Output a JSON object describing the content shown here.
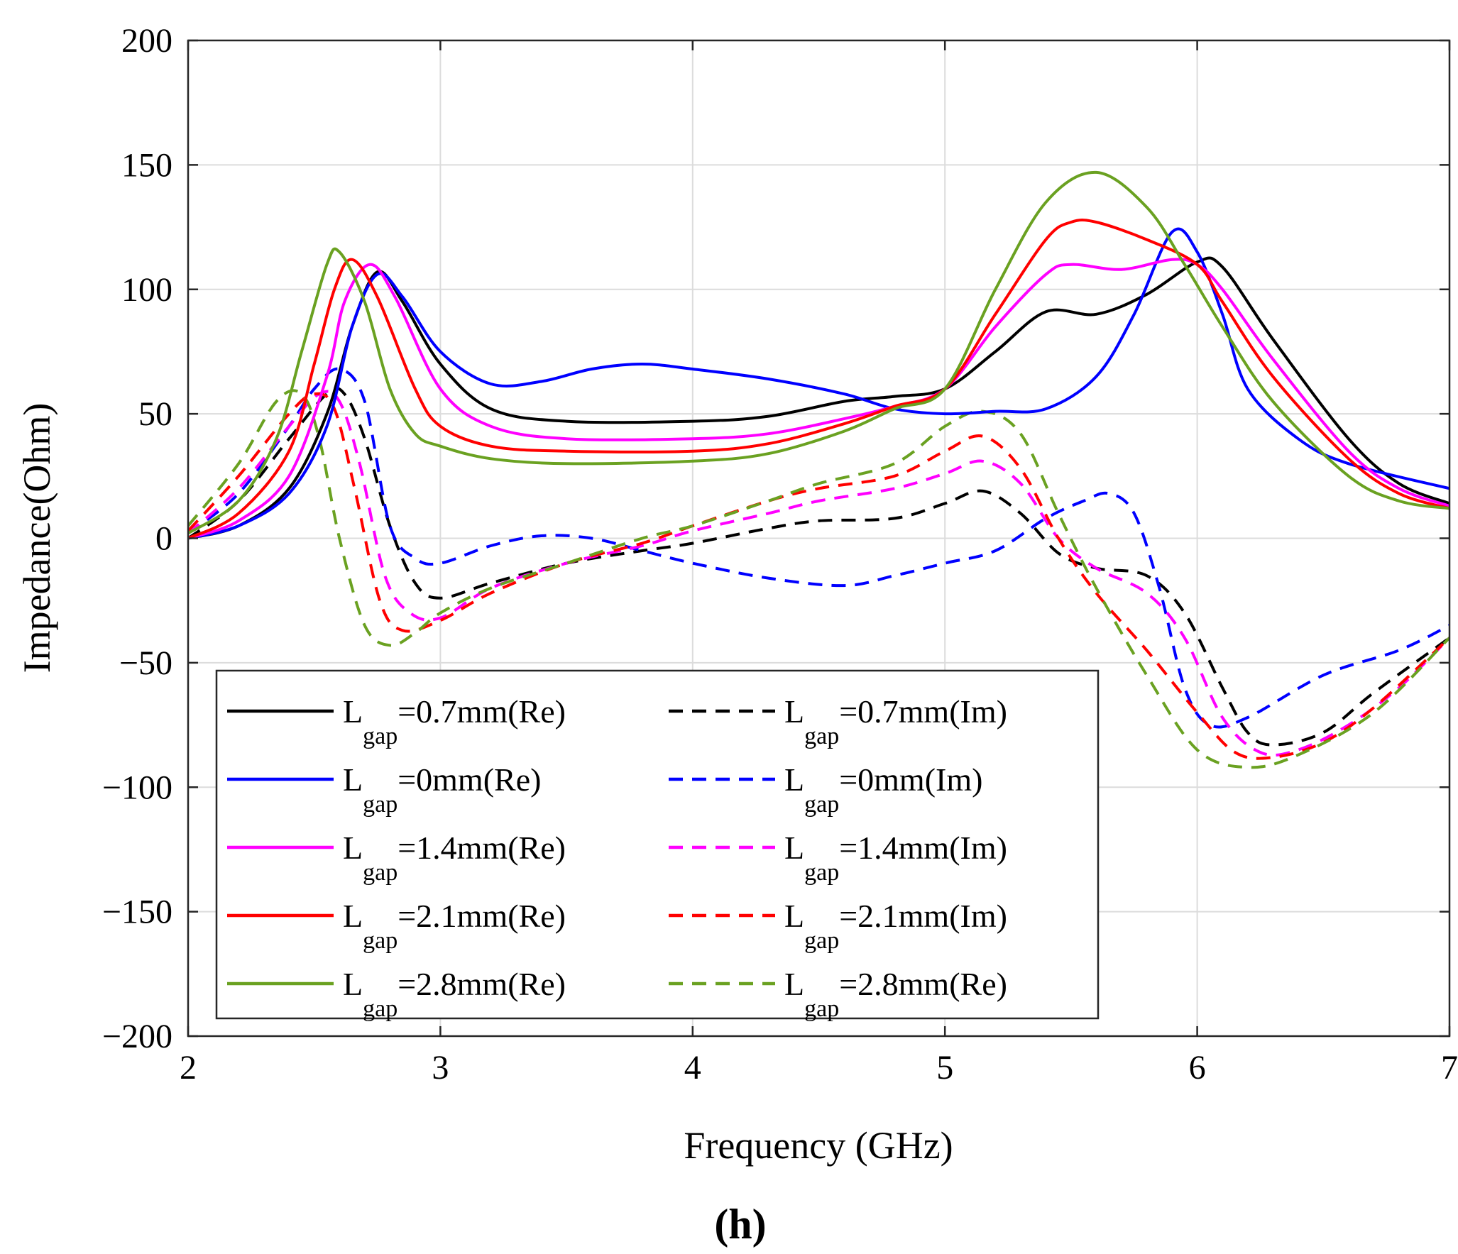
{
  "chart_data": {
    "type": "line",
    "title": "",
    "xlabel": "Frequency (GHz)",
    "ylabel": "Impedance(Ohm)",
    "xlim": [
      2,
      7
    ],
    "ylim": [
      -200,
      200
    ],
    "xticks": [
      2,
      3,
      4,
      5,
      6,
      7
    ],
    "yticks": [
      -200,
      -150,
      -100,
      -50,
      0,
      50,
      100,
      150,
      200
    ],
    "xtick_labels": [
      "2",
      "3",
      "4",
      "5",
      "6",
      "7"
    ],
    "ytick_labels": [
      "−200",
      "−150",
      "−100",
      "−50",
      "0",
      "50",
      "100",
      "150",
      "200"
    ],
    "grid": true,
    "legend_position": "bottom-left",
    "caption": "(h)",
    "series": [
      {
        "name_main": "L",
        "name_sub": "gap",
        "name_rest": "=0.7mm(Re)",
        "color": "#000000",
        "dashed": false,
        "x": [
          2.0,
          2.2,
          2.4,
          2.55,
          2.65,
          2.75,
          2.85,
          3.0,
          3.2,
          3.5,
          4.0,
          4.3,
          4.6,
          4.8,
          5.0,
          5.2,
          5.4,
          5.6,
          5.8,
          6.0,
          6.1,
          6.3,
          6.6,
          6.8,
          7.0
        ],
        "y": [
          0,
          5,
          20,
          50,
          85,
          107,
          95,
          70,
          52,
          47,
          47,
          49,
          55,
          57,
          60,
          75,
          91,
          90,
          98,
          111,
          109,
          80,
          40,
          22,
          14
        ]
      },
      {
        "name_main": "L",
        "name_sub": "gap",
        "name_rest": "=0.7mm(Im)",
        "color": "#000000",
        "dashed": true,
        "x": [
          2.0,
          2.2,
          2.4,
          2.55,
          2.62,
          2.7,
          2.8,
          2.9,
          3.0,
          3.2,
          3.5,
          3.8,
          4.0,
          4.3,
          4.5,
          4.8,
          5.0,
          5.15,
          5.3,
          5.45,
          5.6,
          5.8,
          5.95,
          6.1,
          6.2,
          6.3,
          6.5,
          6.7,
          7.0
        ],
        "y": [
          0,
          15,
          40,
          58,
          58,
          40,
          5,
          -18,
          -24,
          -18,
          -10,
          -5,
          -2,
          4,
          7,
          8,
          14,
          19,
          10,
          -6,
          -12,
          -15,
          -30,
          -60,
          -78,
          -83,
          -78,
          -62,
          -40
        ]
      },
      {
        "name_main": "L",
        "name_sub": "gap",
        "name_rest": "=0mm(Re)",
        "color": "#0000ff",
        "dashed": false,
        "x": [
          2.0,
          2.2,
          2.4,
          2.55,
          2.65,
          2.75,
          2.85,
          3.0,
          3.2,
          3.4,
          3.6,
          3.8,
          4.0,
          4.3,
          4.6,
          4.8,
          5.0,
          5.2,
          5.4,
          5.6,
          5.75,
          5.9,
          6.0,
          6.1,
          6.2,
          6.4,
          6.6,
          7.0
        ],
        "y": [
          0,
          5,
          18,
          45,
          85,
          106,
          97,
          75,
          62,
          63,
          68,
          70,
          68,
          64,
          58,
          52,
          50,
          51,
          52,
          65,
          90,
          123,
          115,
          90,
          60,
          40,
          30,
          20
        ]
      },
      {
        "name_main": "L",
        "name_sub": "gap",
        "name_rest": "=0mm(Im)",
        "color": "#0000ff",
        "dashed": true,
        "x": [
          2.0,
          2.2,
          2.4,
          2.5,
          2.6,
          2.7,
          2.8,
          2.9,
          3.0,
          3.2,
          3.4,
          3.6,
          3.8,
          4.0,
          4.3,
          4.6,
          4.8,
          5.0,
          5.2,
          5.4,
          5.55,
          5.65,
          5.75,
          5.85,
          5.95,
          6.05,
          6.2,
          6.5,
          6.8,
          7.0
        ],
        "y": [
          2,
          18,
          45,
          60,
          68,
          55,
          5,
          -8,
          -10,
          -3,
          1,
          0,
          -5,
          -10,
          -16,
          -19,
          -15,
          -10,
          -5,
          8,
          15,
          18,
          10,
          -20,
          -60,
          -75,
          -72,
          -55,
          -45,
          -35
        ]
      },
      {
        "name_main": "L",
        "name_sub": "gap",
        "name_rest": "=1.4mm(Re)",
        "color": "#ff00ff",
        "dashed": false,
        "x": [
          2.0,
          2.2,
          2.4,
          2.55,
          2.62,
          2.72,
          2.82,
          3.0,
          3.2,
          3.5,
          4.0,
          4.3,
          4.6,
          4.8,
          5.0,
          5.2,
          5.4,
          5.5,
          5.7,
          5.9,
          6.0,
          6.1,
          6.3,
          6.6,
          6.8,
          7.0
        ],
        "y": [
          0,
          7,
          25,
          65,
          95,
          110,
          97,
          60,
          45,
          40,
          40,
          42,
          48,
          53,
          60,
          85,
          106,
          110,
          108,
          112,
          110,
          100,
          72,
          35,
          20,
          13
        ]
      },
      {
        "name_main": "L",
        "name_sub": "gap",
        "name_rest": "=1.4mm(Im)",
        "color": "#ff00ff",
        "dashed": true,
        "x": [
          2.0,
          2.2,
          2.4,
          2.52,
          2.6,
          2.68,
          2.78,
          2.88,
          3.0,
          3.2,
          3.5,
          3.8,
          4.0,
          4.3,
          4.5,
          4.8,
          5.0,
          5.15,
          5.3,
          5.45,
          5.6,
          5.8,
          5.95,
          6.1,
          6.25,
          6.4,
          6.6,
          6.8,
          7.0
        ],
        "y": [
          2,
          20,
          45,
          58,
          55,
          30,
          -15,
          -30,
          -32,
          -20,
          -10,
          -3,
          3,
          10,
          15,
          20,
          26,
          31,
          22,
          0,
          -12,
          -22,
          -40,
          -72,
          -86,
          -85,
          -75,
          -60,
          -40
        ]
      },
      {
        "name_main": "L",
        "name_sub": "gap",
        "name_rest": "=2.1mm(Re)",
        "color": "#ff0000",
        "dashed": false,
        "x": [
          2.0,
          2.2,
          2.4,
          2.5,
          2.58,
          2.65,
          2.75,
          2.9,
          3.0,
          3.2,
          3.5,
          4.0,
          4.3,
          4.6,
          4.8,
          5.0,
          5.2,
          5.4,
          5.5,
          5.6,
          5.8,
          6.0,
          6.1,
          6.3,
          6.6,
          6.8,
          7.0
        ],
        "y": [
          0,
          10,
          35,
          70,
          100,
          112,
          97,
          60,
          45,
          37,
          35,
          35,
          38,
          46,
          53,
          60,
          90,
          120,
          127,
          127,
          120,
          110,
          95,
          65,
          32,
          18,
          12
        ]
      },
      {
        "name_main": "L",
        "name_sub": "gap",
        "name_rest": "=2.1mm(Im)",
        "color": "#ff0000",
        "dashed": true,
        "x": [
          2.0,
          2.2,
          2.4,
          2.5,
          2.58,
          2.66,
          2.76,
          2.85,
          3.0,
          3.2,
          3.5,
          3.8,
          4.0,
          4.3,
          4.5,
          4.8,
          5.0,
          5.15,
          5.3,
          5.45,
          5.6,
          5.8,
          6.0,
          6.15,
          6.3,
          6.5,
          6.7,
          7.0
        ],
        "y": [
          3,
          25,
          50,
          58,
          52,
          20,
          -25,
          -37,
          -33,
          -22,
          -10,
          -2,
          5,
          15,
          20,
          25,
          35,
          41,
          28,
          0,
          -22,
          -45,
          -70,
          -86,
          -88,
          -82,
          -68,
          -40
        ]
      },
      {
        "name_main": "L",
        "name_sub": "gap",
        "name_rest": "=2.8mm(Re)",
        "color": "#6aa121",
        "dashed": false,
        "x": [
          2.0,
          2.2,
          2.35,
          2.45,
          2.55,
          2.6,
          2.7,
          2.8,
          2.9,
          3.0,
          3.2,
          3.5,
          4.0,
          4.3,
          4.6,
          4.8,
          5.0,
          5.2,
          5.4,
          5.6,
          5.8,
          5.95,
          6.1,
          6.3,
          6.6,
          6.8,
          7.0
        ],
        "y": [
          2,
          15,
          40,
          75,
          110,
          115,
          95,
          60,
          42,
          37,
          32,
          30,
          31,
          34,
          43,
          52,
          60,
          100,
          135,
          147,
          133,
          110,
          85,
          55,
          25,
          15,
          12
        ]
      },
      {
        "name_main": "L",
        "name_sub": "gap",
        "name_rest": "=2.8mm(Re)",
        "color": "#6aa121",
        "dashed": true,
        "x": [
          2.0,
          2.2,
          2.35,
          2.45,
          2.52,
          2.6,
          2.7,
          2.8,
          2.9,
          3.0,
          3.2,
          3.5,
          3.8,
          4.0,
          4.3,
          4.5,
          4.8,
          5.0,
          5.15,
          5.3,
          5.45,
          5.6,
          5.8,
          6.0,
          6.2,
          6.4,
          6.7,
          7.0
        ],
        "y": [
          5,
          30,
          55,
          58,
          40,
          0,
          -35,
          -43,
          -38,
          -30,
          -20,
          -10,
          0,
          5,
          15,
          22,
          30,
          45,
          51,
          42,
          10,
          -20,
          -55,
          -85,
          -92,
          -87,
          -70,
          -40
        ]
      }
    ]
  }
}
